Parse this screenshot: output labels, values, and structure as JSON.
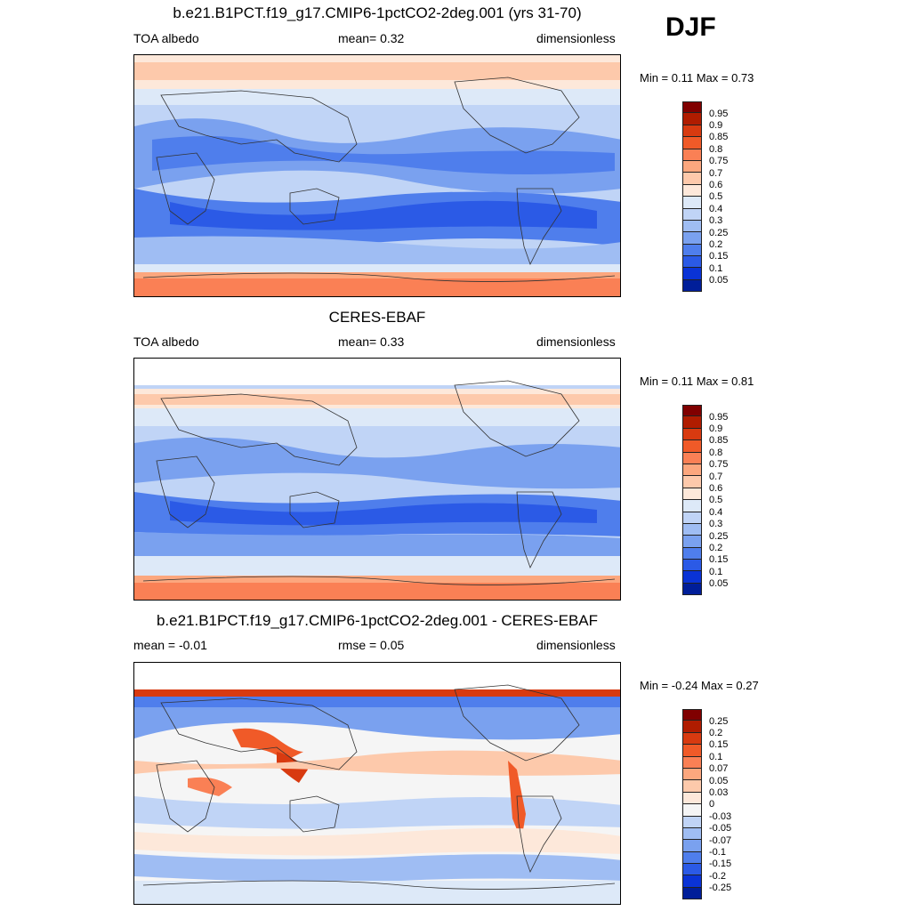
{
  "season": "DJF",
  "colorbar_abs": {
    "labels": [
      "0.95",
      "0.9",
      "0.85",
      "0.8",
      "0.75",
      "0.7",
      "0.6",
      "0.5",
      "0.4",
      "0.3",
      "0.25",
      "0.2",
      "0.15",
      "0.1",
      "0.05"
    ],
    "colors": [
      "#800000",
      "#b01c00",
      "#d83a10",
      "#f05a28",
      "#fa8055",
      "#fca77e",
      "#fdc9ab",
      "#fde8da",
      "#dde9f8",
      "#c0d4f6",
      "#9fbdf3",
      "#7aa1ef",
      "#4f7eec",
      "#2b5ae6",
      "#0a33d6",
      "#001e99"
    ]
  },
  "colorbar_diff": {
    "labels": [
      "0.25",
      "0.2",
      "0.15",
      "0.1",
      "0.07",
      "0.05",
      "0.03",
      "0",
      "-0.03",
      "-0.05",
      "-0.07",
      "-0.1",
      "-0.15",
      "-0.2",
      "-0.25"
    ],
    "colors": [
      "#800000",
      "#b01c00",
      "#d83a10",
      "#f05a28",
      "#fa8055",
      "#fca77e",
      "#fdc9ab",
      "#fde8da",
      "#f5f5f5",
      "#c0d4f6",
      "#9fbdf3",
      "#7aa1ef",
      "#4f7eec",
      "#2b5ae6",
      "#0a33d6",
      "#001e99"
    ]
  },
  "panels": [
    {
      "title": "b.e21.B1PCT.f19_g17.CMIP6-1pctCO2-2deg.001 (yrs 31-70)",
      "left_label": "TOA albedo",
      "center_label": "mean=   0.32",
      "right_label": "dimensionless",
      "minmax": "Min =   0.11 Max =   0.73"
    },
    {
      "title": "CERES-EBAF",
      "left_label": "TOA albedo",
      "center_label": "mean=   0.33",
      "right_label": "dimensionless",
      "minmax": "Min =   0.11 Max =   0.81"
    },
    {
      "title": "b.e21.B1PCT.f19_g17.CMIP6-1pctCO2-2deg.001 - CERES-EBAF",
      "left_label": "mean =  -0.01",
      "center_label": "rmse =   0.05",
      "right_label": "dimensionless",
      "minmax": "Min =  -0.24 Max =   0.27"
    }
  ]
}
